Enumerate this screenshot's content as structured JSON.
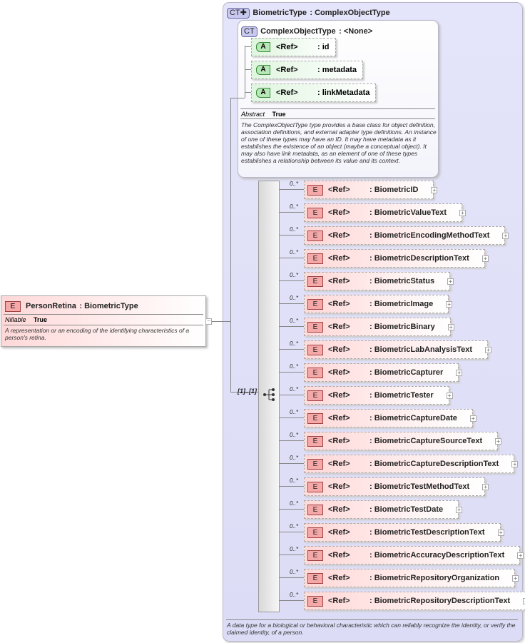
{
  "biometric_type": {
    "badge": "CT",
    "name": "BiometricType",
    "base": ": ComplexObjectType",
    "description": "A data type for a biological or behavioral characteristic which can reliably recognize the identity, or verify the claimed identity, of a person."
  },
  "complex_object_type": {
    "badge": "CT",
    "name": "ComplexObjectType",
    "base": ": <None>",
    "attributes": [
      {
        "badge": "A",
        "ref": "<Ref>",
        "name": ": id"
      },
      {
        "badge": "A",
        "ref": "<Ref>",
        "name": ": metadata"
      },
      {
        "badge": "A",
        "ref": "<Ref>",
        "name": ": linkMetadata"
      }
    ],
    "abstract_label": "Abstract",
    "abstract_value": "True",
    "description": "The ComplexObjectType type provides a base class for object definition, association definitions, and external adapter type definitions. An instance of one of these types may have an ID. It may have metadata as it establishes the existence of an object (maybe a conceptual object). It may also have link metadata, as an element of one of these types establishes a relationship between its value and its context."
  },
  "person_retina": {
    "badge": "E",
    "name": "PersonRetina",
    "type": ": BiometricType",
    "nillable_label": "Nillable",
    "nillable_value": "True",
    "description": "A representation or an encoding of the identifying characteristics of a person's retina."
  },
  "sequence": {
    "cardinality": "[1]..[1]"
  },
  "elements": [
    {
      "card": "0..*",
      "badge": "E",
      "ref": "<Ref>",
      "name": ": BiometricID"
    },
    {
      "card": "0..*",
      "badge": "E",
      "ref": "<Ref>",
      "name": ": BiometricValueText"
    },
    {
      "card": "0..*",
      "badge": "E",
      "ref": "<Ref>",
      "name": ": BiometricEncodingMethodText"
    },
    {
      "card": "0..*",
      "badge": "E",
      "ref": "<Ref>",
      "name": ": BiometricDescriptionText"
    },
    {
      "card": "0..*",
      "badge": "E",
      "ref": "<Ref>",
      "name": ": BiometricStatus"
    },
    {
      "card": "0..*",
      "badge": "E",
      "ref": "<Ref>",
      "name": ": BiometricImage"
    },
    {
      "card": "0..*",
      "badge": "E",
      "ref": "<Ref>",
      "name": ": BiometricBinary"
    },
    {
      "card": "0..*",
      "badge": "E",
      "ref": "<Ref>",
      "name": ": BiometricLabAnalysisText"
    },
    {
      "card": "0..*",
      "badge": "E",
      "ref": "<Ref>",
      "name": ": BiometricCapturer"
    },
    {
      "card": "0..*",
      "badge": "E",
      "ref": "<Ref>",
      "name": ": BiometricTester"
    },
    {
      "card": "0..*",
      "badge": "E",
      "ref": "<Ref>",
      "name": ": BiometricCaptureDate"
    },
    {
      "card": "0..*",
      "badge": "E",
      "ref": "<Ref>",
      "name": ": BiometricCaptureSourceText"
    },
    {
      "card": "0..*",
      "badge": "E",
      "ref": "<Ref>",
      "name": ": BiometricCaptureDescriptionText"
    },
    {
      "card": "0..*",
      "badge": "E",
      "ref": "<Ref>",
      "name": ": BiometricTestMethodText"
    },
    {
      "card": "0..*",
      "badge": "E",
      "ref": "<Ref>",
      "name": ": BiometricTestDate"
    },
    {
      "card": "0..*",
      "badge": "E",
      "ref": "<Ref>",
      "name": ": BiometricTestDescriptionText"
    },
    {
      "card": "0..*",
      "badge": "E",
      "ref": "<Ref>",
      "name": ": BiometricAccuracyDescriptionText"
    },
    {
      "card": "0..*",
      "badge": "E",
      "ref": "<Ref>",
      "name": ": BiometricRepositoryOrganization"
    },
    {
      "card": "0..*",
      "badge": "E",
      "ref": "<Ref>",
      "name": ": BiometricRepositoryDescriptionText"
    }
  ]
}
